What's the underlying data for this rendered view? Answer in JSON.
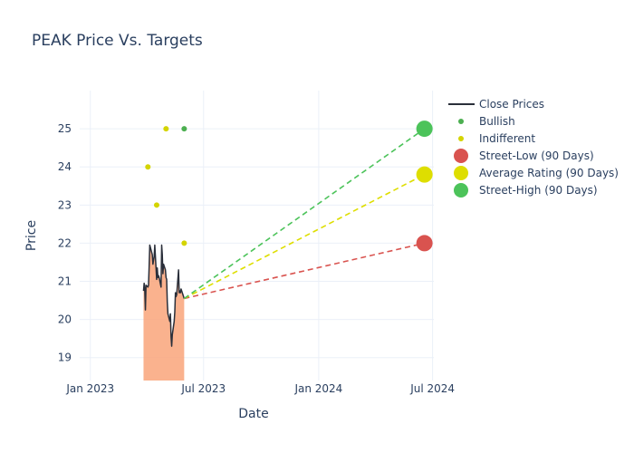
{
  "chart_data": {
    "type": "line",
    "title": "PEAK Price Vs. Targets",
    "xlabel": "Date",
    "ylabel": "Price",
    "xlim": [
      "2022-12-15",
      "2024-07-03"
    ],
    "ylim": [
      18.4,
      26.0
    ],
    "x_ticks": [
      {
        "date": "2023-01-01",
        "label": "Jan 2023"
      },
      {
        "date": "2023-07-01",
        "label": "Jul 2023"
      },
      {
        "date": "2024-01-01",
        "label": "Jan 2024"
      },
      {
        "date": "2024-07-01",
        "label": "Jul 2024"
      }
    ],
    "y_ticks": [
      19,
      20,
      21,
      22,
      23,
      24,
      25
    ],
    "grid": true,
    "legend_position": "right",
    "series": [
      {
        "name": "Close Prices",
        "type": "area-line",
        "color": "#2a2f3a",
        "fill": "#f9a57a",
        "points": [
          [
            "2023-03-27",
            20.75
          ],
          [
            "2023-03-28",
            20.95
          ],
          [
            "2023-03-29",
            20.8
          ],
          [
            "2023-03-30",
            20.25
          ],
          [
            "2023-03-31",
            20.9
          ],
          [
            "2023-04-03",
            20.85
          ],
          [
            "2023-04-04",
            20.9
          ],
          [
            "2023-04-05",
            21.4
          ],
          [
            "2023-04-06",
            21.95
          ],
          [
            "2023-04-10",
            21.7
          ],
          [
            "2023-04-11",
            21.45
          ],
          [
            "2023-04-12",
            21.55
          ],
          [
            "2023-04-13",
            21.65
          ],
          [
            "2023-04-14",
            21.95
          ],
          [
            "2023-04-17",
            21.05
          ],
          [
            "2023-04-18",
            21.35
          ],
          [
            "2023-04-19",
            21.1
          ],
          [
            "2023-04-20",
            21.15
          ],
          [
            "2023-04-21",
            21.1
          ],
          [
            "2023-04-24",
            20.85
          ],
          [
            "2023-04-25",
            21.95
          ],
          [
            "2023-04-26",
            21.7
          ],
          [
            "2023-04-27",
            21.2
          ],
          [
            "2023-04-28",
            21.45
          ],
          [
            "2023-05-01",
            21.3
          ],
          [
            "2023-05-02",
            21.1
          ],
          [
            "2023-05-03",
            21.05
          ],
          [
            "2023-05-04",
            20.45
          ],
          [
            "2023-05-05",
            20.15
          ],
          [
            "2023-05-08",
            19.95
          ],
          [
            "2023-05-09",
            20.15
          ],
          [
            "2023-05-10",
            19.55
          ],
          [
            "2023-05-11",
            19.3
          ],
          [
            "2023-05-12",
            19.6
          ],
          [
            "2023-05-15",
            19.95
          ],
          [
            "2023-05-16",
            20.2
          ],
          [
            "2023-05-17",
            20.7
          ],
          [
            "2023-05-18",
            20.6
          ],
          [
            "2023-05-19",
            20.65
          ],
          [
            "2023-05-22",
            21.3
          ],
          [
            "2023-05-23",
            20.7
          ],
          [
            "2023-05-24",
            20.75
          ],
          [
            "2023-05-25",
            20.7
          ],
          [
            "2023-05-26",
            20.8
          ],
          [
            "2023-05-30",
            20.6
          ],
          [
            "2023-05-31",
            20.55
          ]
        ]
      },
      {
        "name": "Bullish",
        "type": "scatter",
        "color": "#4caf50",
        "points": [
          [
            "2023-05-31",
            25.0
          ]
        ]
      },
      {
        "name": "Indifferent",
        "type": "scatter",
        "color": "#d4d400",
        "points": [
          [
            "2023-04-03",
            24.0
          ],
          [
            "2023-04-17",
            23.0
          ],
          [
            "2023-05-02",
            25.0
          ],
          [
            "2023-05-31",
            22.0
          ]
        ]
      },
      {
        "name": "Street-Low (90 Days)",
        "type": "target",
        "color": "#d9534f",
        "from": [
          "2023-05-31",
          20.55
        ],
        "to": [
          "2024-06-18",
          22.0
        ]
      },
      {
        "name": "Average Rating (90 Days)",
        "type": "target",
        "color": "#dede00",
        "from": [
          "2023-05-31",
          20.55
        ],
        "to": [
          "2024-06-18",
          23.8
        ]
      },
      {
        "name": "Street-High (90 Days)",
        "type": "target",
        "color": "#4cc35a",
        "from": [
          "2023-05-31",
          20.55
        ],
        "to": [
          "2024-06-18",
          25.0
        ]
      }
    ]
  }
}
